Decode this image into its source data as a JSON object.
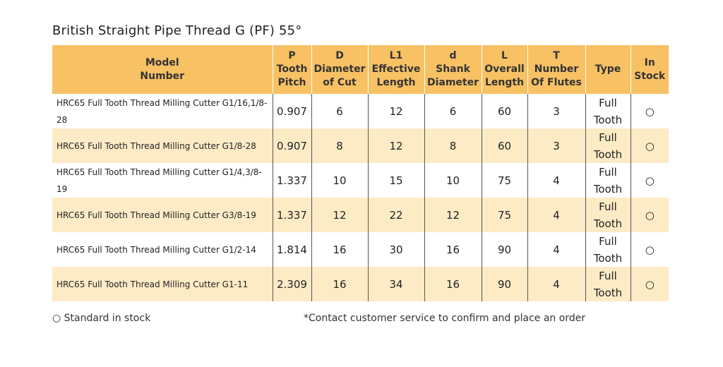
{
  "header": {
    "title": "British Straight Pipe Thread G (PF) 55°"
  },
  "table": {
    "columns": [
      [
        "Model",
        "Number"
      ],
      [
        "P",
        "Tooth",
        "Pitch"
      ],
      [
        "D",
        "Diameter",
        "of Cut"
      ],
      [
        "L1",
        "Effective",
        "Length"
      ],
      [
        "d",
        "Shank",
        "Diameter"
      ],
      [
        "L",
        "Overall",
        "Length"
      ],
      [
        "T",
        "Number",
        "Of Flutes"
      ],
      [
        "Type"
      ],
      [
        "In",
        "Stock"
      ]
    ],
    "rows": [
      [
        "HRC65 Full Tooth Thread Milling Cutter G1/16,1/8-28",
        "0.907",
        "6",
        "12",
        "6",
        "60",
        "3",
        "Full Tooth",
        "○"
      ],
      [
        "HRC65 Full Tooth Thread Milling Cutter G1/8-28",
        "0.907",
        "8",
        "12",
        "8",
        "60",
        "3",
        "Full Tooth",
        "○"
      ],
      [
        "HRC65 Full Tooth Thread Milling Cutter G1/4,3/8-19",
        "1.337",
        "10",
        "15",
        "10",
        "75",
        "4",
        "Full Tooth",
        "○"
      ],
      [
        "HRC65 Full Tooth Thread Milling Cutter G3/8-19",
        "1.337",
        "12",
        "22",
        "12",
        "75",
        "4",
        "Full Tooth",
        "○"
      ],
      [
        "HRC65 Full Tooth Thread Milling Cutter G1/2-14",
        "1.814",
        "16",
        "30",
        "16",
        "90",
        "4",
        "Full Tooth",
        "○"
      ],
      [
        "HRC65 Full Tooth Thread Milling Cutter G1-11",
        "2.309",
        "16",
        "34",
        "16",
        "90",
        "4",
        "Full Tooth",
        "○"
      ]
    ]
  },
  "footer": {
    "legend": "○ Standard in stock",
    "note": "*Contact customer service to confirm and place an order"
  }
}
